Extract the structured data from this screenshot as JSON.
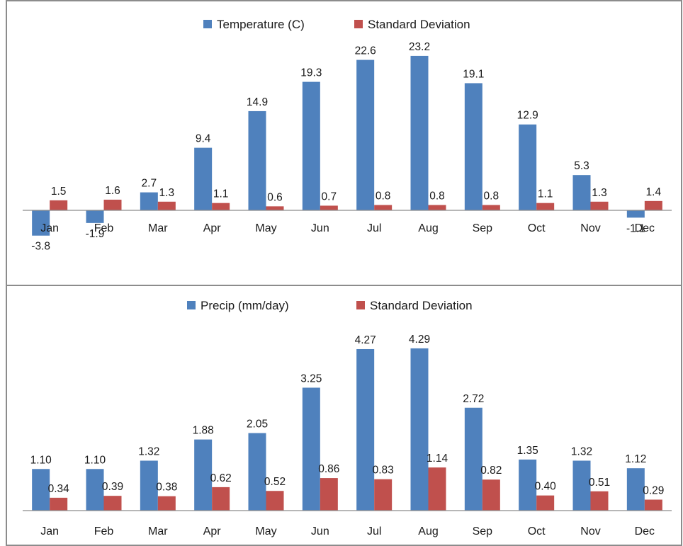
{
  "colors": {
    "primary_series": "#4f81bd",
    "secondary_series": "#c0504d",
    "axis": "#8c8c8c",
    "border": "#8c8c8c"
  },
  "chart_data": [
    {
      "type": "bar",
      "categories": [
        "Jan",
        "Feb",
        "Mar",
        "Apr",
        "May",
        "Jun",
        "Jul",
        "Aug",
        "Sep",
        "Oct",
        "Nov",
        "Dec"
      ],
      "series": [
        {
          "name": "Temperature (C)",
          "values": [
            -3.8,
            -1.9,
            2.7,
            9.4,
            14.9,
            19.3,
            22.6,
            23.2,
            19.1,
            12.9,
            5.3,
            -1.1
          ],
          "labels": [
            "-3.8",
            "-1.9",
            "2.7",
            "9.4",
            "14.9",
            "19.3",
            "22.6",
            "23.2",
            "19.1",
            "12.9",
            "5.3",
            "-1.1"
          ]
        },
        {
          "name": "Standard Deviation",
          "values": [
            1.5,
            1.6,
            1.3,
            1.1,
            0.6,
            0.7,
            0.8,
            0.8,
            0.8,
            1.1,
            1.3,
            1.4
          ],
          "labels": [
            "1.5",
            "1.6",
            "1.3",
            "1.1",
            "0.6",
            "0.7",
            "0.8",
            "0.8",
            "0.8",
            "1.1",
            "1.3",
            "1.4"
          ]
        }
      ],
      "title": "",
      "xlabel": "",
      "ylabel": "",
      "ylim": [
        -5,
        25
      ],
      "grid": false,
      "legend_position": "top"
    },
    {
      "type": "bar",
      "categories": [
        "Jan",
        "Feb",
        "Mar",
        "Apr",
        "May",
        "Jun",
        "Jul",
        "Aug",
        "Sep",
        "Oct",
        "Nov",
        "Dec"
      ],
      "series": [
        {
          "name": "Precip (mm/day)",
          "values": [
            1.1,
            1.1,
            1.32,
            1.88,
            2.05,
            3.25,
            4.27,
            4.29,
            2.72,
            1.35,
            1.32,
            1.12
          ],
          "labels": [
            "1.10",
            "1.10",
            "1.32",
            "1.88",
            "2.05",
            "3.25",
            "4.27",
            "4.29",
            "2.72",
            "1.35",
            "1.32",
            "1.12"
          ]
        },
        {
          "name": "Standard Deviation",
          "values": [
            0.34,
            0.39,
            0.38,
            0.62,
            0.52,
            0.86,
            0.83,
            1.14,
            0.82,
            0.4,
            0.51,
            0.29
          ],
          "labels": [
            "0.34",
            "0.39",
            "0.38",
            "0.62",
            "0.52",
            "0.86",
            "0.83",
            "1.14",
            "0.82",
            "0.40",
            "0.51",
            "0.29"
          ]
        }
      ],
      "title": "",
      "xlabel": "",
      "ylabel": "",
      "ylim": [
        0,
        5
      ],
      "grid": false,
      "legend_position": "top"
    }
  ]
}
